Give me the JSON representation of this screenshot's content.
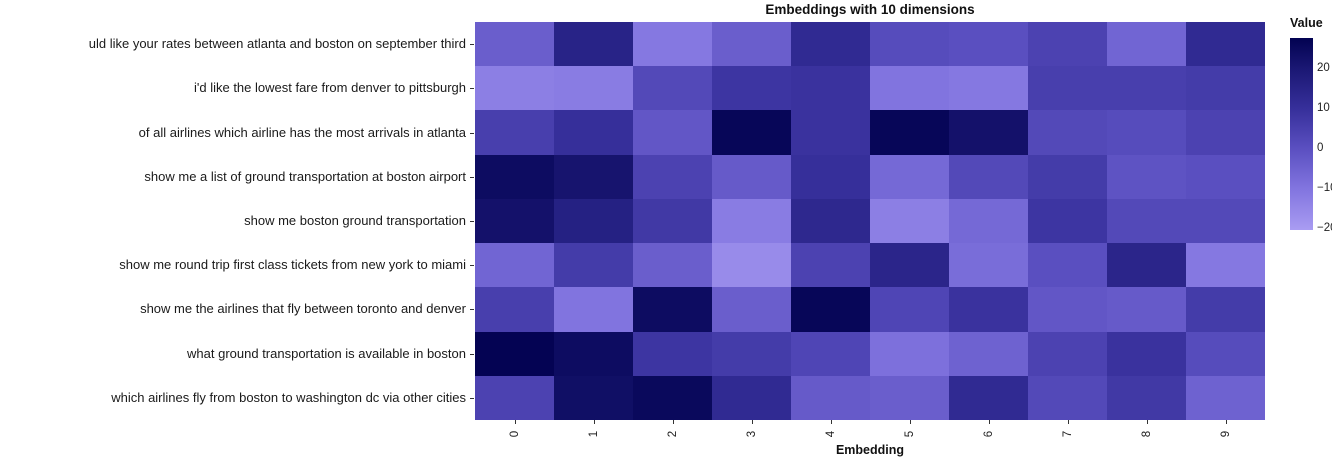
{
  "figure": {
    "title": "Embeddings with 10 dimensions"
  },
  "x_axis": {
    "label": "Embedding",
    "ticks": [
      "0",
      "1",
      "2",
      "3",
      "4",
      "5",
      "6",
      "7",
      "8",
      "9"
    ]
  },
  "y_axis": {
    "labels": [
      "uld like your rates between atlanta and boston on september third",
      "i'd like the lowest fare from denver to pittsburgh",
      "of all airlines which airline has the most arrivals in atlanta",
      "show me a list of ground transportation at boston airport",
      "show me boston ground transportation",
      "show me round trip first class tickets from new york to miami",
      "show me the airlines that fly between toronto and denver",
      "what ground transportation is available in boston",
      "which airlines fly from boston to washington dc via other cities"
    ]
  },
  "colorbar": {
    "title": "Value",
    "tick_labels": [
      "20",
      "10",
      "0",
      "−10",
      "−20"
    ],
    "tick_values": [
      20,
      10,
      0,
      -10,
      -20
    ]
  },
  "chart_data": {
    "type": "heatmap",
    "title": "Embeddings with 10 dimensions",
    "xlabel": "Embedding",
    "ylabel": "",
    "x": [
      "0",
      "1",
      "2",
      "3",
      "4",
      "5",
      "6",
      "7",
      "8",
      "9"
    ],
    "categories": [
      "uld like your rates between atlanta and boston on september third",
      "i'd like the lowest fare from denver to pittsburgh",
      "of all airlines which airline has the most arrivals in atlanta",
      "show me a list of ground transportation at boston airport",
      "show me boston ground transportation",
      "show me round trip first class tickets from new york to miami",
      "show me the airlines that fly between toronto and denver",
      "what ground transportation is available in boston",
      "which airlines fly from boston to washington dc via other cities"
    ],
    "values": [
      [
        -4,
        15,
        -11,
        -4,
        12,
        1,
        0,
        4,
        -6,
        12
      ],
      [
        -13,
        -12,
        2,
        8,
        9,
        -10,
        -11,
        5,
        5,
        6
      ],
      [
        5,
        10,
        -2,
        26,
        9,
        26,
        22,
        2,
        1,
        4
      ],
      [
        24,
        21,
        4,
        -3,
        10,
        -7,
        2,
        6,
        -1,
        0
      ],
      [
        22,
        16,
        7,
        -12,
        13,
        -13,
        -7,
        8,
        2,
        2
      ],
      [
        -6,
        6,
        -4,
        -16,
        4,
        14,
        -8,
        0,
        14,
        -11
      ],
      [
        5,
        -10,
        24,
        -4,
        26,
        3,
        9,
        -2,
        -3,
        6
      ],
      [
        27,
        24,
        8,
        6,
        3,
        -9,
        -5,
        4,
        9,
        1
      ],
      [
        4,
        23,
        25,
        12,
        -3,
        -4,
        12,
        2,
        7,
        -5
      ]
    ],
    "value_domain": [
      -20.5,
      27.5
    ],
    "grid": false,
    "legend": {
      "title": "Value",
      "position": "right"
    },
    "colormap_stops": [
      {
        "value": 27.5,
        "color": "#020251"
      },
      {
        "value": 20.0,
        "color": "#1a1773"
      },
      {
        "value": 10.0,
        "color": "#362f9a"
      },
      {
        "value": 0.0,
        "color": "#5a4fc0"
      },
      {
        "value": -10.0,
        "color": "#8174df"
      },
      {
        "value": -20.5,
        "color": "#a99cf2"
      }
    ]
  }
}
